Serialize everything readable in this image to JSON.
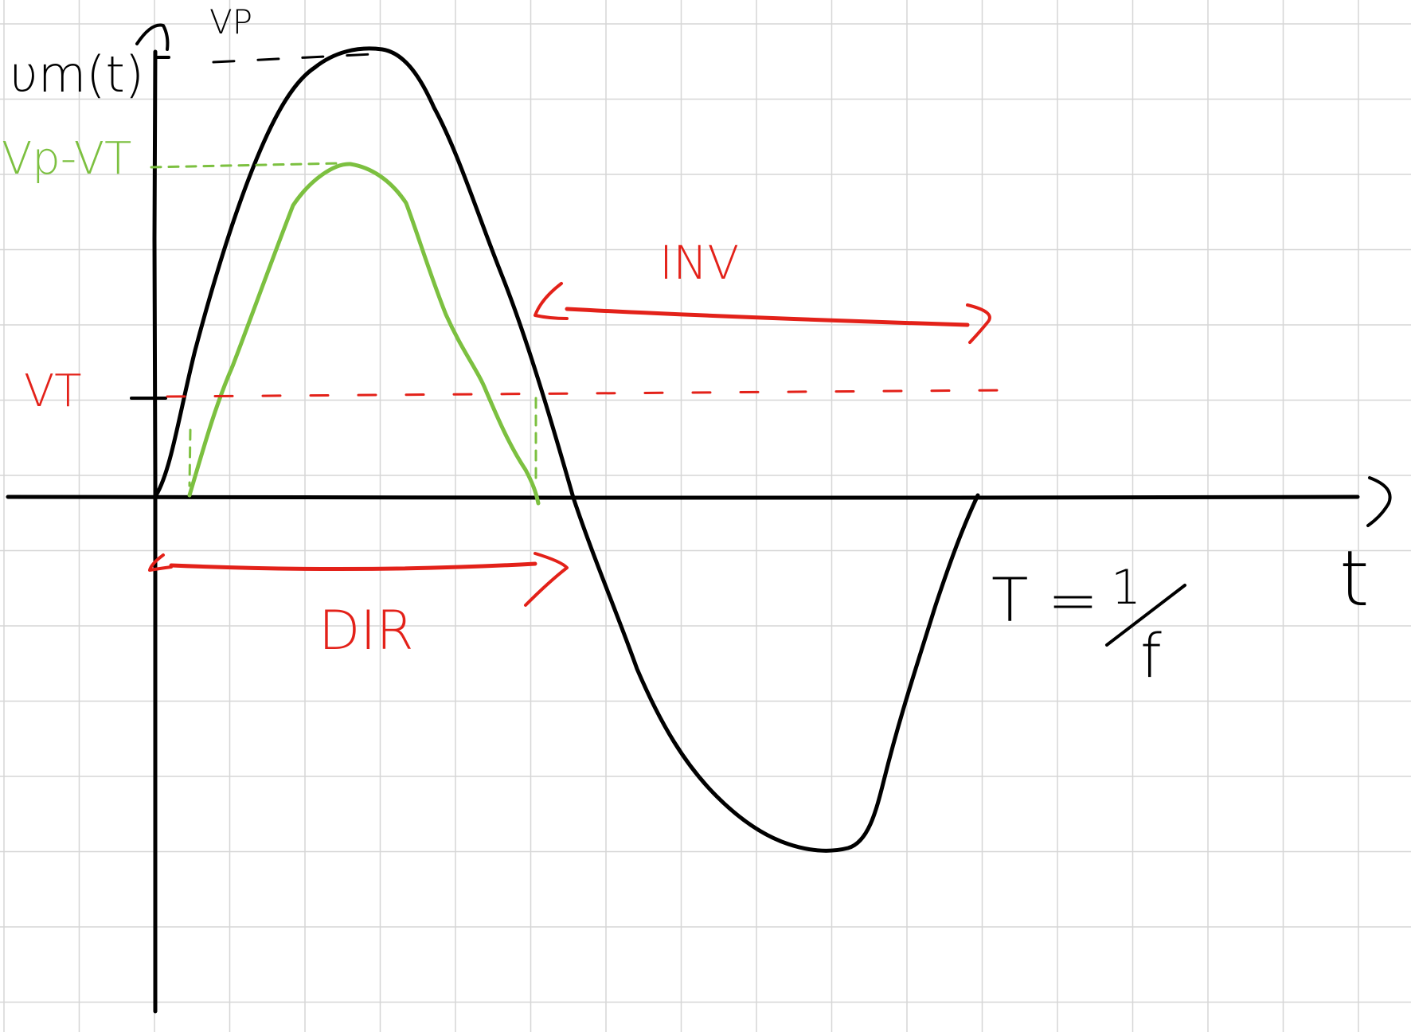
{
  "labels": {
    "y_axis": "υm(t)",
    "x_axis": "t",
    "vp_top": "VP",
    "vp_minus_vt": "Vp-VT",
    "vt": "VT",
    "inv": "INV",
    "dir": "DIR",
    "period": "T = 1/f",
    "period_numerator": "1",
    "period_denominator": "f",
    "period_lhs": "T ="
  },
  "colors": {
    "axes": "#000000",
    "input_signal": "#000000",
    "output_signal": "#7cc040",
    "annotations": "#e32119",
    "grid": "#d6d6d6",
    "background": "#ffffff"
  }
}
